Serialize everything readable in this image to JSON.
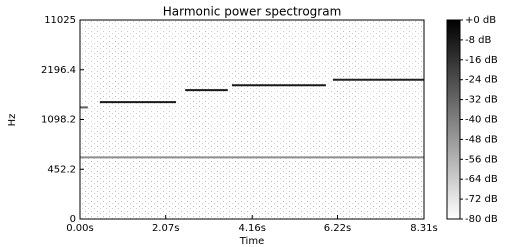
{
  "chart_data": {
    "type": "spectrogram",
    "title": "Harmonic power spectrogram",
    "xlabel": "Time",
    "ylabel": "Hz",
    "xlim": [
      0,
      8.31
    ],
    "xticks": [
      {
        "value": 0,
        "label": "0.00s"
      },
      {
        "value": 2.07,
        "label": "2.07s"
      },
      {
        "value": 4.16,
        "label": "4.16s"
      },
      {
        "value": 6.22,
        "label": "6.22s"
      },
      {
        "value": 8.31,
        "label": "8.31s"
      }
    ],
    "ylim": [
      0,
      11025
    ],
    "yticks": [
      0,
      452.2,
      1098.2,
      2196.4,
      11025
    ],
    "yscale": "log",
    "clim": [
      -80,
      0
    ],
    "colorbar_ticks": [
      {
        "value": 0,
        "label": "+0 dB"
      },
      {
        "value": -8,
        "label": "-8 dB"
      },
      {
        "value": -16,
        "label": "-16 dB"
      },
      {
        "value": -24,
        "label": "-24 dB"
      },
      {
        "value": -32,
        "label": "-32 dB"
      },
      {
        "value": -40,
        "label": "-40 dB"
      },
      {
        "value": -48,
        "label": "-48 dB"
      },
      {
        "value": -56,
        "label": "-56 dB"
      },
      {
        "value": -64,
        "label": "-64 dB"
      },
      {
        "value": -72,
        "label": "-72 dB"
      },
      {
        "value": -80,
        "label": "-80 dB"
      }
    ],
    "segments": [
      {
        "start": 0,
        "end": 0.19,
        "hz": 1300,
        "db": -30
      },
      {
        "start": 0.48,
        "end": 2.32,
        "hz": 1400,
        "db": -8
      },
      {
        "start": 2.54,
        "end": 3.57,
        "hz": 1654,
        "db": -8
      },
      {
        "start": 3.67,
        "end": 5.94,
        "hz": 1770,
        "db": -8
      },
      {
        "start": 6.11,
        "end": 8.31,
        "hz": 1912,
        "db": -10
      },
      {
        "start": 0,
        "end": 8.31,
        "hz": 559,
        "db": -45
      }
    ]
  }
}
